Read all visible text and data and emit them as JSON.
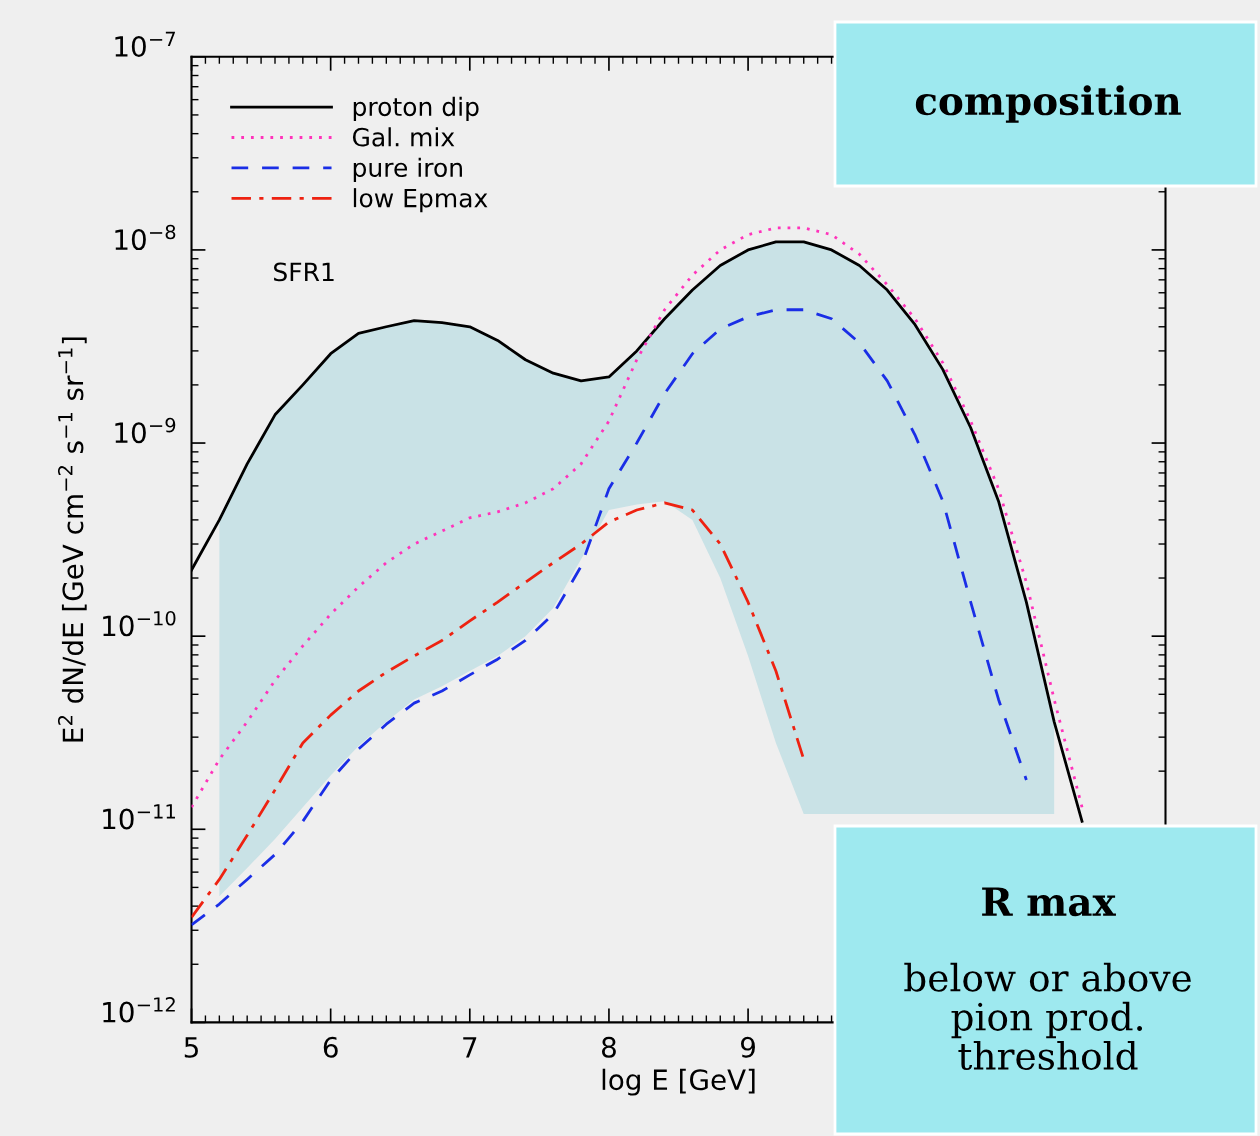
{
  "chart_data": {
    "type": "line",
    "xlabel": "log E [GeV]",
    "ylabel": "E$^{2}$ dN/dE [GeV cm$^{−2}$ s$^{−1}$ sr$^{−1}$]",
    "x": [
      5.0,
      5.2,
      5.4,
      5.6,
      5.8,
      6.0,
      6.2,
      6.4,
      6.6,
      6.8,
      7.0,
      7.2,
      7.4,
      7.6,
      7.8,
      8.0,
      8.2,
      8.4,
      8.6,
      8.8,
      9.0,
      9.2,
      9.4,
      9.6,
      9.8,
      10.0,
      10.2,
      10.4,
      10.6,
      10.8,
      11.0,
      11.2,
      11.4
    ],
    "series": [
      {
        "name": "proton dip",
        "color": "#000000",
        "line_style": "solid",
        "values": [
          2.2e-10,
          4e-10,
          7.8e-10,
          1.4e-09,
          2e-09,
          2.9e-09,
          3.7e-09,
          4e-09,
          4.3e-09,
          4.2e-09,
          4e-09,
          3.4e-09,
          2.7e-09,
          2.3e-09,
          2.1e-09,
          2.2e-09,
          3e-09,
          4.4e-09,
          6.2e-09,
          8.3e-09,
          1e-08,
          1.1e-08,
          1.1e-08,
          1e-08,
          8.3e-09,
          6.2e-09,
          4.1e-09,
          2.4e-09,
          1.2e-09,
          5e-10,
          1.5e-10,
          3.6e-11,
          1.1e-11
        ],
        "type": "line",
        "upper": [
          null,
          4e-10,
          7.8e-10,
          1.4e-09,
          2e-09,
          2.9e-09,
          3.7e-09,
          4e-09,
          4.3e-09,
          4.2e-09,
          4e-09,
          3.4e-09,
          2.7e-09,
          2.3e-09,
          2.1e-09,
          2.2e-09,
          3e-09,
          4.4e-09,
          6.2e-09,
          8.3e-09,
          1e-08,
          1.1e-08,
          1.1e-08,
          1e-08,
          8.3e-09,
          6.2e-09,
          4.1e-09,
          2.4e-09,
          1.2e-09,
          5e-10,
          1.5e-10,
          3.6e-11,
          null
        ],
        "lower": [
          null,
          4.5e-12,
          6.3e-12,
          8.9e-12,
          1.3e-11,
          1.9e-11,
          2.7e-11,
          3.6e-11,
          4.7e-11,
          5.5e-11,
          6.6e-11,
          7.9e-11,
          1e-10,
          1.4e-10,
          2.5e-10,
          4.5e-10,
          4.8e-10,
          5e-10,
          4e-10,
          2e-10,
          7.9e-11,
          2.8e-11,
          1.2e-11,
          1.2e-11,
          1.2e-11,
          1.2e-11,
          1.2e-11,
          1.2e-11,
          1.2e-11,
          1.2e-11,
          1.2e-11,
          1.2e-11,
          null
        ]
      },
      {
        "name": "Gal. mix",
        "color": "#ff33bb",
        "line_style": "dotted",
        "values": [
          1.3e-11,
          2.3e-11,
          3.6e-11,
          5.9e-11,
          8.9e-11,
          1.3e-10,
          1.8e-10,
          2.4e-10,
          3e-10,
          3.5e-10,
          4.1e-10,
          4.4e-10,
          4.9e-10,
          5.8e-10,
          7.8e-10,
          1.3e-09,
          2.7e-09,
          4.9e-09,
          7.4e-09,
          1e-08,
          1.2e-08,
          1.3e-08,
          1.3e-08,
          1.2e-08,
          9.5e-09,
          6.6e-09,
          4.4e-09,
          2.6e-09,
          1.3e-09,
          5.8e-10,
          1.9e-10,
          4.7e-11,
          1.3e-11
        ]
      },
      {
        "name": "pure iron",
        "color": "#1a2ee6",
        "line_style": "dashed",
        "values": [
          3.2e-12,
          4.1e-12,
          5.5e-12,
          7.4e-12,
          1.1e-11,
          1.8e-11,
          2.6e-11,
          3.5e-11,
          4.5e-11,
          5.2e-11,
          6.3e-11,
          7.6e-11,
          9.5e-11,
          1.3e-10,
          2.3e-10,
          5.8e-10,
          1e-09,
          1.8e-09,
          2.9e-09,
          3.9e-09,
          4.5e-09,
          4.9e-09,
          4.9e-09,
          4.4e-09,
          3.3e-09,
          2.1e-09,
          1.1e-09,
          5e-10,
          1.5e-10,
          4.7e-11,
          1.8e-11,
          null,
          null
        ]
      },
      {
        "name": "low Epmax",
        "color": "#ee2211",
        "line_style": "dashdot",
        "values": [
          3.5e-12,
          5.5e-12,
          9.3e-12,
          1.6e-11,
          2.8e-11,
          3.9e-11,
          5.2e-11,
          6.5e-11,
          7.9e-11,
          9.5e-11,
          1.2e-10,
          1.5e-10,
          1.9e-10,
          2.4e-10,
          3e-10,
          3.9e-10,
          4.5e-10,
          4.9e-10,
          4.5e-10,
          3e-10,
          1.5e-10,
          6.6e-11,
          2.3e-11,
          null,
          null,
          null,
          null,
          null,
          null,
          null,
          null,
          null,
          null
        ]
      }
    ],
    "log": "y",
    "xlim": [
      5,
      12
    ],
    "xticks": [
      5,
      6,
      7,
      8,
      9
    ],
    "ylim": [
      1e-12,
      1e-07
    ],
    "yticks": [
      {
        "value": 1e-12,
        "label": "10$^{−12}$"
      },
      {
        "value": 1e-11,
        "label": "10$^{−11}$"
      },
      {
        "value": 1e-10,
        "label": "10$^{−10}$"
      },
      {
        "value": 1e-09,
        "label": "10$^{−9}$"
      },
      {
        "value": 1e-08,
        "label": "10$^{−8}$"
      },
      {
        "value": 1e-07,
        "label": "10$^{−7}$"
      }
    ],
    "legend": "top left",
    "grid": false,
    "annotations": [
      "SFR1",
      "composition",
      "R max",
      "below or above\npion prod.\nthreshold"
    ]
  }
}
